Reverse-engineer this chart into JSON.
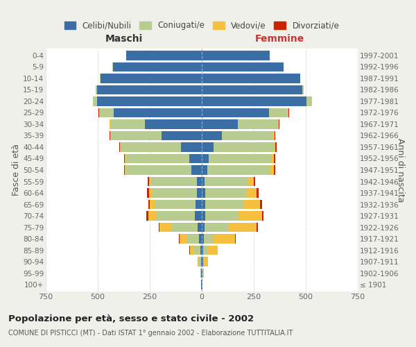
{
  "age_groups": [
    "100+",
    "95-99",
    "90-94",
    "85-89",
    "80-84",
    "75-79",
    "70-74",
    "65-69",
    "60-64",
    "55-59",
    "50-54",
    "45-49",
    "40-44",
    "35-39",
    "30-34",
    "25-29",
    "20-24",
    "15-19",
    "10-14",
    "5-9",
    "0-4"
  ],
  "birth_years": [
    "≤ 1901",
    "1902-1906",
    "1907-1911",
    "1912-1916",
    "1917-1921",
    "1922-1926",
    "1927-1931",
    "1932-1936",
    "1937-1941",
    "1942-1946",
    "1947-1951",
    "1952-1956",
    "1957-1961",
    "1962-1966",
    "1967-1971",
    "1972-1976",
    "1977-1981",
    "1982-1986",
    "1987-1991",
    "1992-1996",
    "1997-2001"
  ],
  "colors": {
    "celibi": "#3a6ea5",
    "coniugati": "#b8cc90",
    "vedovi": "#f5c040",
    "divorziati": "#cc2200"
  },
  "maschi": {
    "celibi": [
      2,
      3,
      5,
      8,
      12,
      20,
      35,
      30,
      25,
      25,
      50,
      60,
      100,
      195,
      275,
      425,
      505,
      505,
      488,
      428,
      365
    ],
    "coniugati": [
      0,
      2,
      8,
      28,
      58,
      128,
      185,
      198,
      212,
      218,
      315,
      305,
      290,
      242,
      165,
      68,
      18,
      4,
      2,
      1,
      0
    ],
    "vedovi": [
      0,
      2,
      8,
      22,
      38,
      55,
      38,
      22,
      15,
      10,
      4,
      4,
      4,
      3,
      2,
      2,
      1,
      0,
      0,
      0,
      0
    ],
    "divorziati": [
      0,
      0,
      0,
      2,
      3,
      5,
      8,
      8,
      10,
      8,
      6,
      6,
      4,
      4,
      3,
      2,
      1,
      0,
      0,
      0,
      0
    ]
  },
  "femmine": {
    "nubili": [
      2,
      3,
      5,
      8,
      10,
      14,
      18,
      18,
      16,
      14,
      28,
      33,
      58,
      95,
      172,
      322,
      502,
      482,
      472,
      392,
      325
    ],
    "coniugati": [
      0,
      2,
      5,
      18,
      43,
      115,
      155,
      185,
      200,
      210,
      302,
      302,
      288,
      248,
      193,
      93,
      26,
      7,
      2,
      1,
      0
    ],
    "vedove": [
      0,
      4,
      20,
      50,
      106,
      134,
      116,
      76,
      46,
      26,
      17,
      12,
      8,
      6,
      4,
      2,
      1,
      0,
      0,
      0,
      0
    ],
    "divorziate": [
      0,
      0,
      0,
      2,
      3,
      7,
      9,
      10,
      10,
      8,
      7,
      7,
      7,
      5,
      4,
      2,
      1,
      0,
      0,
      0,
      0
    ]
  },
  "title": "Popolazione per età, sesso e stato civile - 2002",
  "subtitle": "COMUNE DI PISTICCI (MT) - Dati ISTAT 1° gennaio 2002 - Elaborazione TUTTITALIA.IT",
  "header_left": "Maschi",
  "header_right": "Femmine",
  "ylabel_left": "Fasce di età",
  "ylabel_right": "Anni di nascita",
  "xlim": 750,
  "legend_labels": [
    "Celibi/Nubili",
    "Coniugati/e",
    "Vedovi/e",
    "Divorziati/e"
  ],
  "bg_color": "#f0f0eb",
  "plot_bg": "#ffffff"
}
